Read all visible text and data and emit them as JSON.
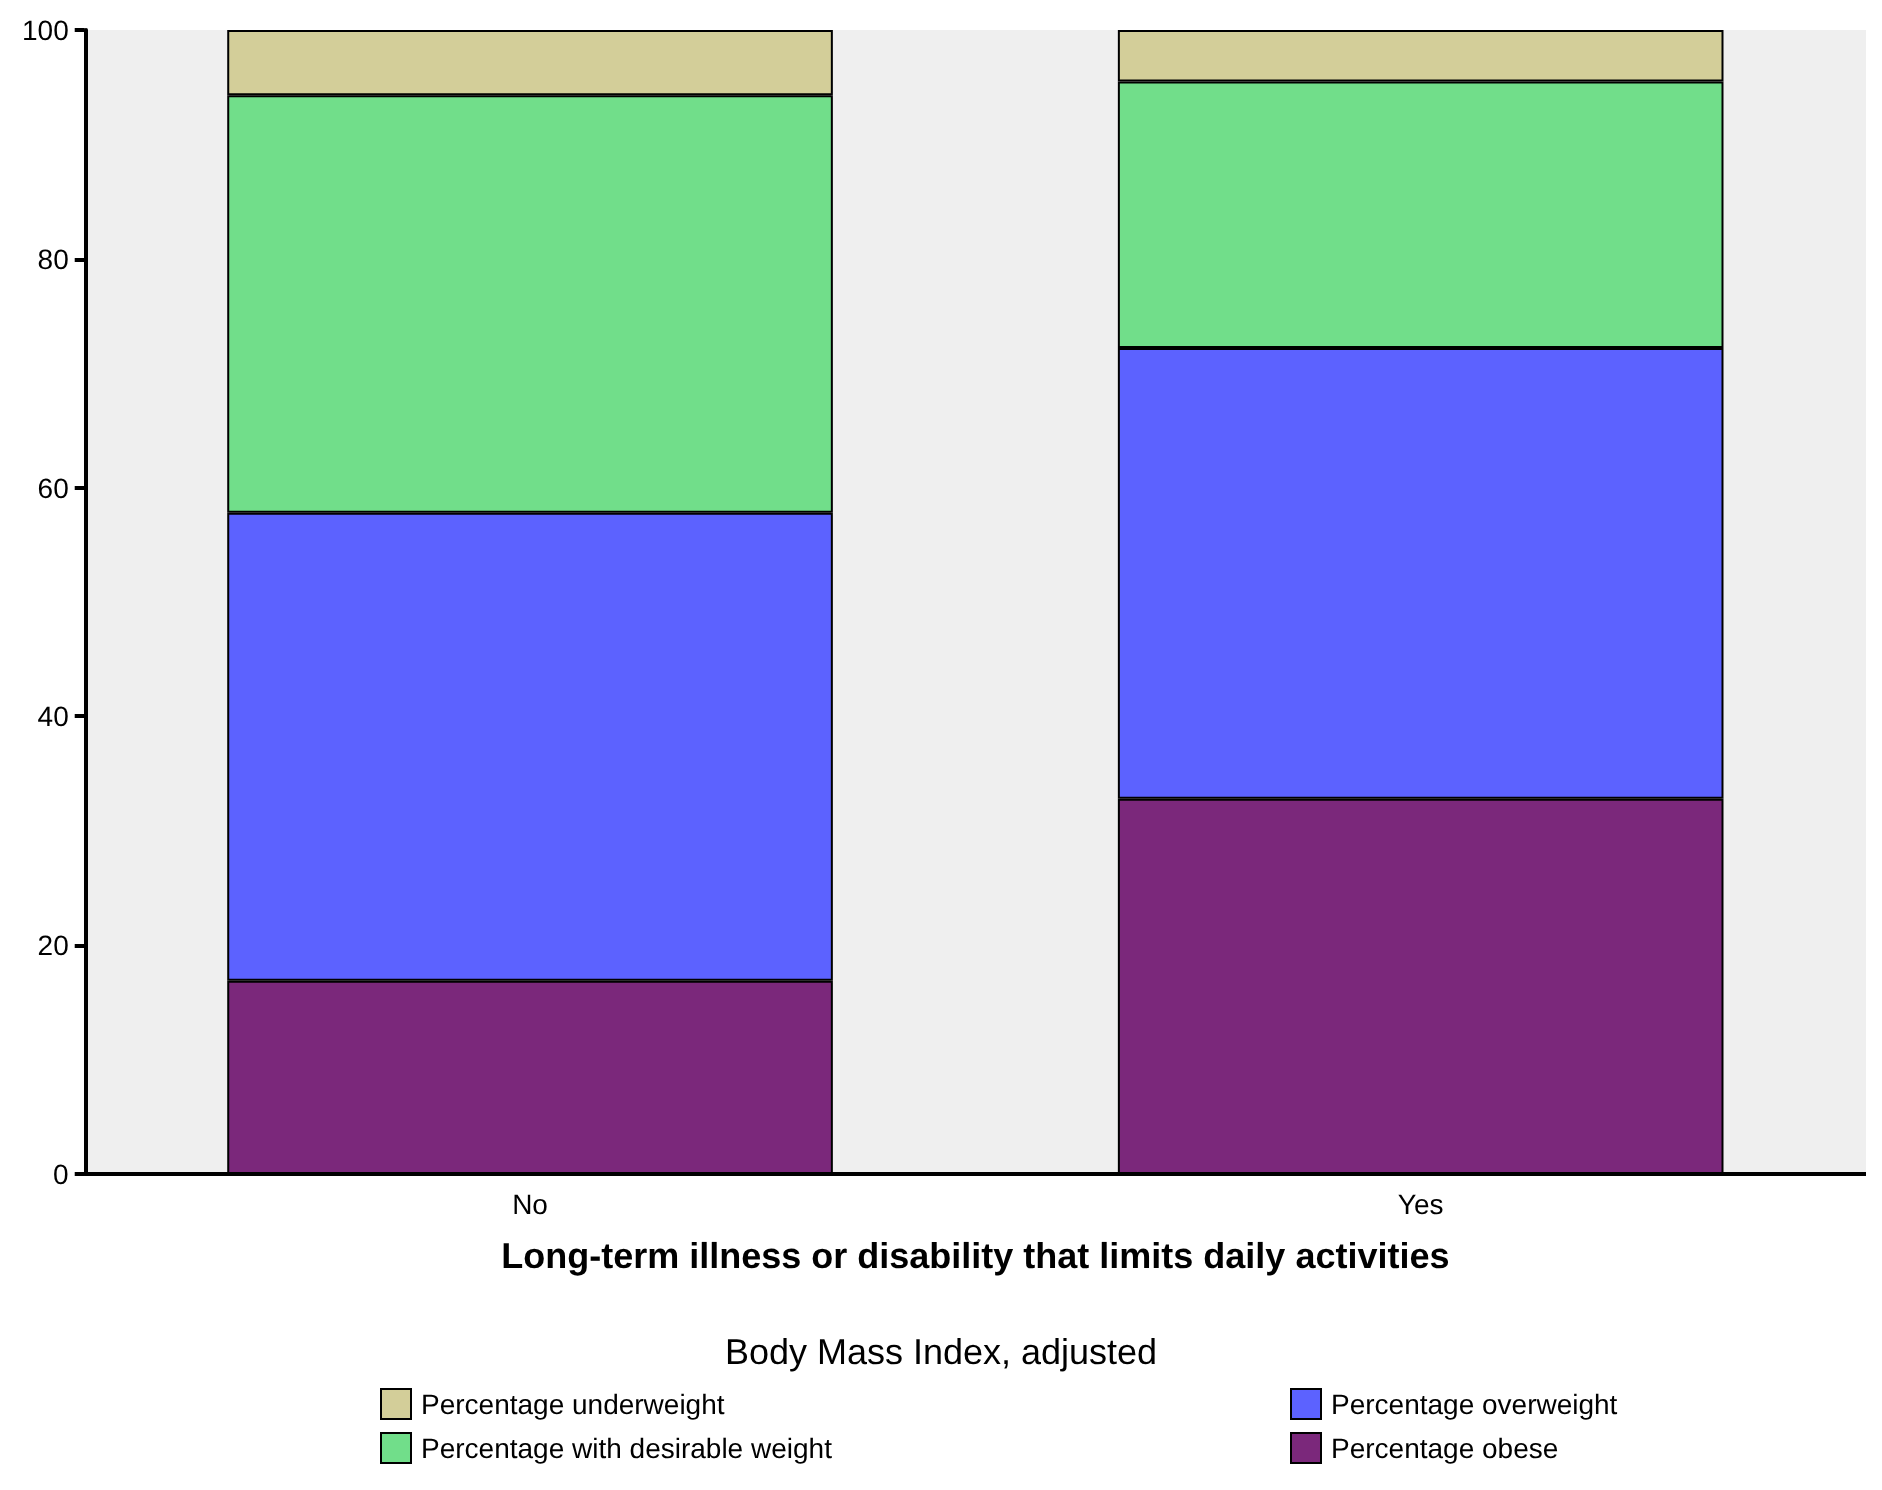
{
  "chart_data": {
    "type": "bar",
    "stacked": true,
    "xlabel": "Long-term illness or disability that limits daily activities",
    "legend_title": "Body Mass Index, adjusted",
    "categories": [
      "No",
      "Yes"
    ],
    "series": [
      {
        "name": "Percentage obese",
        "color": "#7b287b",
        "values": [
          16.9,
          32.8
        ]
      },
      {
        "name": "Percentage overweight",
        "color": "#5c62ff",
        "values": [
          40.9,
          39.4
        ]
      },
      {
        "name": "Percentage with desirable weight",
        "color": "#71de8a",
        "values": [
          36.5,
          23.3
        ]
      },
      {
        "name": "Percentage underweight",
        "color": "#d3ce99",
        "values": [
          5.7,
          4.5
        ]
      }
    ],
    "ylim": [
      0,
      100
    ],
    "yticks": [
      0,
      20,
      40,
      60,
      80,
      100
    ],
    "grid": false,
    "legend": "bottom"
  }
}
